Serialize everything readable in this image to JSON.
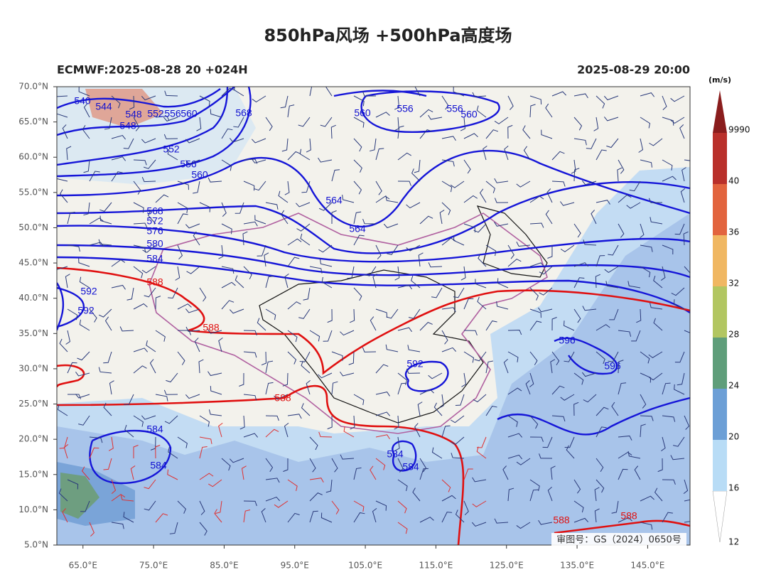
{
  "map": {
    "title": "850hPa风场 +500hPa高度场",
    "subtitle_left": "ECMWF:2025-08-28 20 +024H",
    "subtitle_right": "2025-08-29 20:00",
    "extent": {
      "lon": [
        61.3,
        151
      ],
      "lat": [
        5,
        70
      ]
    },
    "lon_ticks": [
      {
        "value": 65,
        "label": "65.0°E"
      },
      {
        "value": 75,
        "label": "75.0°E"
      },
      {
        "value": 85,
        "label": "85.0°E"
      },
      {
        "value": 95,
        "label": "95.0°E"
      },
      {
        "value": 105,
        "label": "105.0°E"
      },
      {
        "value": 115,
        "label": "115.0°E"
      },
      {
        "value": 125,
        "label": "125.0°E"
      },
      {
        "value": 135,
        "label": "135.0°E"
      },
      {
        "value": 145,
        "label": "145.0°E"
      }
    ],
    "lat_ticks": [
      {
        "value": 70,
        "label": "70.0°N"
      },
      {
        "value": 65,
        "label": "65.0°N"
      },
      {
        "value": 60,
        "label": "60.0°N"
      },
      {
        "value": 55,
        "label": "55.0°N"
      },
      {
        "value": 50,
        "label": "50.0°N"
      },
      {
        "value": 45,
        "label": "45.0°N"
      },
      {
        "value": 40,
        "label": "40.0°N"
      },
      {
        "value": 35,
        "label": "35.0°N"
      },
      {
        "value": 30,
        "label": "30.0°N"
      },
      {
        "value": 25,
        "label": "25.0°N"
      },
      {
        "value": 20,
        "label": "20.0°N"
      },
      {
        "value": 15,
        "label": "15.0°N"
      },
      {
        "value": 10,
        "label": "10.0°N"
      },
      {
        "value": 5,
        "label": "5.0°N"
      }
    ],
    "colorbar": {
      "unit": "(m/s)",
      "levels": [
        12,
        16,
        20,
        24,
        28,
        32,
        36,
        40,
        9990
      ],
      "colors": [
        "#ffffff",
        "#b8dcf6",
        "#6c9fd6",
        "#5f9e7a",
        "#b2c661",
        "#f0b762",
        "#e2643e",
        "#b9302b",
        "#8a1d1d"
      ]
    },
    "contour_labels": [
      "540",
      "544",
      "548",
      "552",
      "556",
      "560",
      "548",
      "568",
      "560",
      "556",
      "556",
      "560",
      "552",
      "556",
      "560",
      "564",
      "564",
      "568",
      "572",
      "576",
      "580",
      "584",
      "588",
      "592",
      "592",
      "588",
      "588",
      "592",
      "596",
      "596",
      "584",
      "584",
      "584",
      "584",
      "588",
      "588"
    ],
    "approval": "审图号：GS（2024）0650号"
  }
}
